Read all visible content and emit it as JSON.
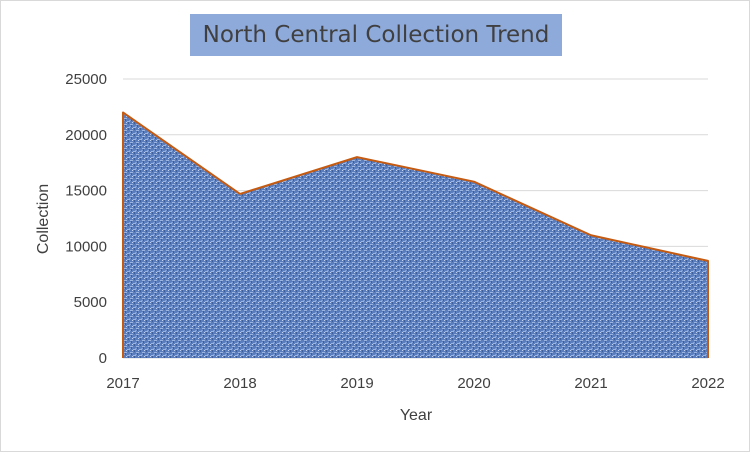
{
  "chart_data": {
    "type": "area",
    "title": "North Central Collection Trend",
    "xlabel": "Year",
    "ylabel": "Collection",
    "x": [
      "2017",
      "2018",
      "2019",
      "2020",
      "2021",
      "2022"
    ],
    "series": [
      {
        "values": [
          22000,
          14700,
          18000,
          15800,
          11000,
          8700
        ]
      }
    ],
    "ylim": [
      0,
      25000
    ],
    "yticks": [
      "0",
      "5000",
      "10000",
      "15000",
      "20000",
      "25000"
    ],
    "grid": true,
    "legend": "none",
    "colors": {
      "fill": "#5a7dbd",
      "outline": "#c55a11",
      "title_background": "#8eaadb",
      "text": "#404040",
      "grid": "#d9d9d9"
    }
  }
}
